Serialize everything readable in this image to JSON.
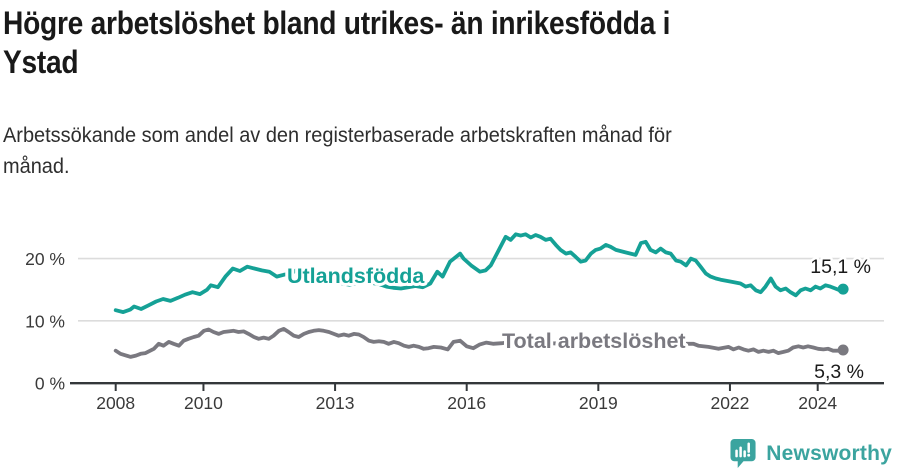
{
  "header": {
    "title": "Högre arbetslöshet bland utrikes- än inrikesfödda i Ystad",
    "title_lines": [
      "Högre arbetslöshet bland utrikes- än inrikesfödda i",
      "Ystad"
    ],
    "subtitle": "Arbetssökande som andel av den registerbaserade arbetskraften månad för månad.",
    "subtitle_lines": [
      "Arbetssökande som andel av den registerbaserade arbetskraften månad för",
      "månad."
    ]
  },
  "chart_data": {
    "type": "line",
    "grid": "horizontal",
    "x_axis": {
      "tick_labels": [
        "2008",
        "2010",
        "2013",
        "2016",
        "2019",
        "2022",
        "2024"
      ],
      "tick_years": [
        2008,
        2010,
        2013,
        2016,
        2019,
        2022,
        2024
      ],
      "range": [
        2008,
        2024.58
      ]
    },
    "y_axis": {
      "tick_labels": [
        "0 %",
        "10 %",
        "20 %"
      ],
      "tick_values": [
        0,
        10,
        20
      ],
      "range": [
        0,
        25
      ],
      "unit": "%"
    },
    "series": [
      {
        "name": "Utlandsfödda",
        "color": "#15a196",
        "end_label": "15,1 %",
        "end_value": 15.1,
        "points": [
          [
            2008.0,
            11.7
          ],
          [
            2008.17,
            11.4
          ],
          [
            2008.33,
            11.8
          ],
          [
            2008.42,
            12.3
          ],
          [
            2008.58,
            11.9
          ],
          [
            2008.75,
            12.5
          ],
          [
            2008.92,
            13.1
          ],
          [
            2009.08,
            13.5
          ],
          [
            2009.25,
            13.2
          ],
          [
            2009.42,
            13.7
          ],
          [
            2009.58,
            14.2
          ],
          [
            2009.75,
            14.6
          ],
          [
            2009.92,
            14.3
          ],
          [
            2010.08,
            15.0
          ],
          [
            2010.17,
            15.7
          ],
          [
            2010.33,
            15.4
          ],
          [
            2010.5,
            17.1
          ],
          [
            2010.67,
            18.4
          ],
          [
            2010.83,
            18.0
          ],
          [
            2011.0,
            18.7
          ],
          [
            2011.17,
            18.4
          ],
          [
            2011.33,
            18.1
          ],
          [
            2011.5,
            17.9
          ],
          [
            2011.67,
            17.1
          ],
          [
            2011.83,
            17.4
          ],
          [
            2012.0,
            17.6
          ],
          [
            2012.17,
            18.4
          ],
          [
            2012.33,
            18.1
          ],
          [
            2012.5,
            17.5
          ],
          [
            2012.67,
            17.0
          ],
          [
            2012.83,
            16.6
          ],
          [
            2013.0,
            16.3
          ],
          [
            2013.17,
            16.0
          ],
          [
            2013.33,
            15.8
          ],
          [
            2013.5,
            16.1
          ],
          [
            2013.67,
            16.4
          ],
          [
            2013.83,
            16.1
          ],
          [
            2014.0,
            15.9
          ],
          [
            2014.17,
            15.5
          ],
          [
            2014.33,
            15.3
          ],
          [
            2014.5,
            15.2
          ],
          [
            2014.67,
            15.4
          ],
          [
            2014.83,
            15.6
          ],
          [
            2015.0,
            15.4
          ],
          [
            2015.17,
            16.0
          ],
          [
            2015.33,
            17.9
          ],
          [
            2015.45,
            17.1
          ],
          [
            2015.62,
            19.5
          ],
          [
            2015.85,
            20.8
          ],
          [
            2015.93,
            20.0
          ],
          [
            2016.1,
            18.9
          ],
          [
            2016.3,
            17.9
          ],
          [
            2016.43,
            18.1
          ],
          [
            2016.55,
            18.9
          ],
          [
            2016.77,
            21.9
          ],
          [
            2016.89,
            23.5
          ],
          [
            2017.0,
            23.0
          ],
          [
            2017.12,
            23.9
          ],
          [
            2017.23,
            23.7
          ],
          [
            2017.34,
            23.9
          ],
          [
            2017.46,
            23.4
          ],
          [
            2017.57,
            23.8
          ],
          [
            2017.68,
            23.5
          ],
          [
            2017.8,
            23.0
          ],
          [
            2017.91,
            23.2
          ],
          [
            2018.03,
            22.2
          ],
          [
            2018.14,
            21.4
          ],
          [
            2018.26,
            20.8
          ],
          [
            2018.37,
            21.0
          ],
          [
            2018.48,
            20.3
          ],
          [
            2018.6,
            19.5
          ],
          [
            2018.71,
            19.7
          ],
          [
            2018.83,
            20.8
          ],
          [
            2018.94,
            21.4
          ],
          [
            2019.05,
            21.6
          ],
          [
            2019.17,
            22.2
          ],
          [
            2019.28,
            21.9
          ],
          [
            2019.4,
            21.4
          ],
          [
            2019.62,
            21.0
          ],
          [
            2019.85,
            20.6
          ],
          [
            2019.97,
            22.5
          ],
          [
            2020.08,
            22.7
          ],
          [
            2020.19,
            21.4
          ],
          [
            2020.31,
            21.0
          ],
          [
            2020.42,
            21.6
          ],
          [
            2020.54,
            21.0
          ],
          [
            2020.65,
            20.8
          ],
          [
            2020.77,
            19.7
          ],
          [
            2020.88,
            19.5
          ],
          [
            2021.0,
            18.9
          ],
          [
            2021.11,
            20.0
          ],
          [
            2021.22,
            19.7
          ],
          [
            2021.33,
            18.7
          ],
          [
            2021.45,
            17.6
          ],
          [
            2021.56,
            17.1
          ],
          [
            2021.68,
            16.8
          ],
          [
            2021.79,
            16.6
          ],
          [
            2022.02,
            16.3
          ],
          [
            2022.24,
            16.0
          ],
          [
            2022.36,
            15.5
          ],
          [
            2022.47,
            15.7
          ],
          [
            2022.59,
            14.9
          ],
          [
            2022.7,
            14.6
          ],
          [
            2022.81,
            15.5
          ],
          [
            2022.93,
            16.8
          ],
          [
            2023.04,
            15.5
          ],
          [
            2023.15,
            14.9
          ],
          [
            2023.27,
            15.2
          ],
          [
            2023.38,
            14.6
          ],
          [
            2023.5,
            14.1
          ],
          [
            2023.61,
            14.9
          ],
          [
            2023.72,
            15.2
          ],
          [
            2023.84,
            14.9
          ],
          [
            2023.95,
            15.5
          ],
          [
            2024.06,
            15.2
          ],
          [
            2024.18,
            15.7
          ],
          [
            2024.29,
            15.5
          ],
          [
            2024.4,
            15.2
          ],
          [
            2024.5,
            14.9
          ],
          [
            2024.58,
            15.1
          ]
        ]
      },
      {
        "name": "Total arbetslöshet",
        "color": "#7a7980",
        "end_label": "5,3 %",
        "end_value": 5.3,
        "points": [
          [
            2008.0,
            5.2
          ],
          [
            2008.11,
            4.7
          ],
          [
            2008.34,
            4.2
          ],
          [
            2008.46,
            4.4
          ],
          [
            2008.57,
            4.7
          ],
          [
            2008.68,
            4.8
          ],
          [
            2008.87,
            5.5
          ],
          [
            2008.98,
            6.3
          ],
          [
            2009.09,
            6.0
          ],
          [
            2009.21,
            6.6
          ],
          [
            2009.32,
            6.3
          ],
          [
            2009.44,
            6.0
          ],
          [
            2009.55,
            6.8
          ],
          [
            2009.66,
            7.1
          ],
          [
            2009.78,
            7.4
          ],
          [
            2009.89,
            7.6
          ],
          [
            2010.01,
            8.4
          ],
          [
            2010.12,
            8.6
          ],
          [
            2010.23,
            8.2
          ],
          [
            2010.35,
            7.9
          ],
          [
            2010.46,
            8.2
          ],
          [
            2010.58,
            8.3
          ],
          [
            2010.69,
            8.4
          ],
          [
            2010.8,
            8.2
          ],
          [
            2010.92,
            8.3
          ],
          [
            2011.03,
            7.9
          ],
          [
            2011.15,
            7.4
          ],
          [
            2011.26,
            7.1
          ],
          [
            2011.37,
            7.3
          ],
          [
            2011.49,
            7.1
          ],
          [
            2011.6,
            7.6
          ],
          [
            2011.72,
            8.4
          ],
          [
            2011.83,
            8.7
          ],
          [
            2011.94,
            8.2
          ],
          [
            2012.06,
            7.6
          ],
          [
            2012.17,
            7.4
          ],
          [
            2012.29,
            7.9
          ],
          [
            2012.4,
            8.2
          ],
          [
            2012.51,
            8.4
          ],
          [
            2012.63,
            8.5
          ],
          [
            2012.74,
            8.4
          ],
          [
            2012.86,
            8.2
          ],
          [
            2012.97,
            7.9
          ],
          [
            2013.08,
            7.6
          ],
          [
            2013.2,
            7.8
          ],
          [
            2013.31,
            7.6
          ],
          [
            2013.43,
            7.9
          ],
          [
            2013.54,
            7.8
          ],
          [
            2013.65,
            7.4
          ],
          [
            2013.77,
            6.8
          ],
          [
            2013.88,
            6.6
          ],
          [
            2014.0,
            6.7
          ],
          [
            2014.11,
            6.6
          ],
          [
            2014.22,
            6.3
          ],
          [
            2014.34,
            6.6
          ],
          [
            2014.45,
            6.4
          ],
          [
            2014.57,
            6.0
          ],
          [
            2014.68,
            5.8
          ],
          [
            2014.79,
            6.0
          ],
          [
            2014.91,
            5.8
          ],
          [
            2015.02,
            5.5
          ],
          [
            2015.13,
            5.6
          ],
          [
            2015.25,
            5.8
          ],
          [
            2015.41,
            5.7
          ],
          [
            2015.57,
            5.4
          ],
          [
            2015.7,
            6.6
          ],
          [
            2015.85,
            6.8
          ],
          [
            2016.0,
            5.9
          ],
          [
            2016.15,
            5.6
          ],
          [
            2016.3,
            6.2
          ],
          [
            2016.45,
            6.5
          ],
          [
            2016.6,
            6.3
          ],
          [
            2016.8,
            6.4
          ],
          [
            2017.0,
            6.6
          ],
          [
            2017.3,
            6.5
          ],
          [
            2017.6,
            6.3
          ],
          [
            2017.9,
            6.4
          ],
          [
            2018.2,
            6.3
          ],
          [
            2018.5,
            6.2
          ],
          [
            2018.8,
            6.3
          ],
          [
            2019.1,
            6.4
          ],
          [
            2019.4,
            6.3
          ],
          [
            2019.7,
            6.2
          ],
          [
            2020.0,
            6.5
          ],
          [
            2020.3,
            6.6
          ],
          [
            2020.6,
            6.4
          ],
          [
            2020.9,
            6.3
          ],
          [
            2021.17,
            6.3
          ],
          [
            2021.28,
            6.0
          ],
          [
            2021.51,
            5.8
          ],
          [
            2021.74,
            5.5
          ],
          [
            2021.97,
            5.8
          ],
          [
            2022.08,
            5.4
          ],
          [
            2022.2,
            5.7
          ],
          [
            2022.31,
            5.4
          ],
          [
            2022.42,
            5.2
          ],
          [
            2022.54,
            5.4
          ],
          [
            2022.65,
            5.0
          ],
          [
            2022.76,
            5.2
          ],
          [
            2022.88,
            5.0
          ],
          [
            2022.99,
            5.2
          ],
          [
            2023.1,
            4.8
          ],
          [
            2023.22,
            5.0
          ],
          [
            2023.33,
            5.2
          ],
          [
            2023.44,
            5.7
          ],
          [
            2023.56,
            5.9
          ],
          [
            2023.67,
            5.7
          ],
          [
            2023.78,
            5.9
          ],
          [
            2023.9,
            5.7
          ],
          [
            2024.01,
            5.5
          ],
          [
            2024.13,
            5.4
          ],
          [
            2024.24,
            5.5
          ],
          [
            2024.35,
            5.2
          ],
          [
            2024.47,
            5.2
          ],
          [
            2024.58,
            5.3
          ]
        ]
      }
    ]
  },
  "footer": {
    "brand": "Newsworthy",
    "brand_color": "#3ba49f"
  }
}
